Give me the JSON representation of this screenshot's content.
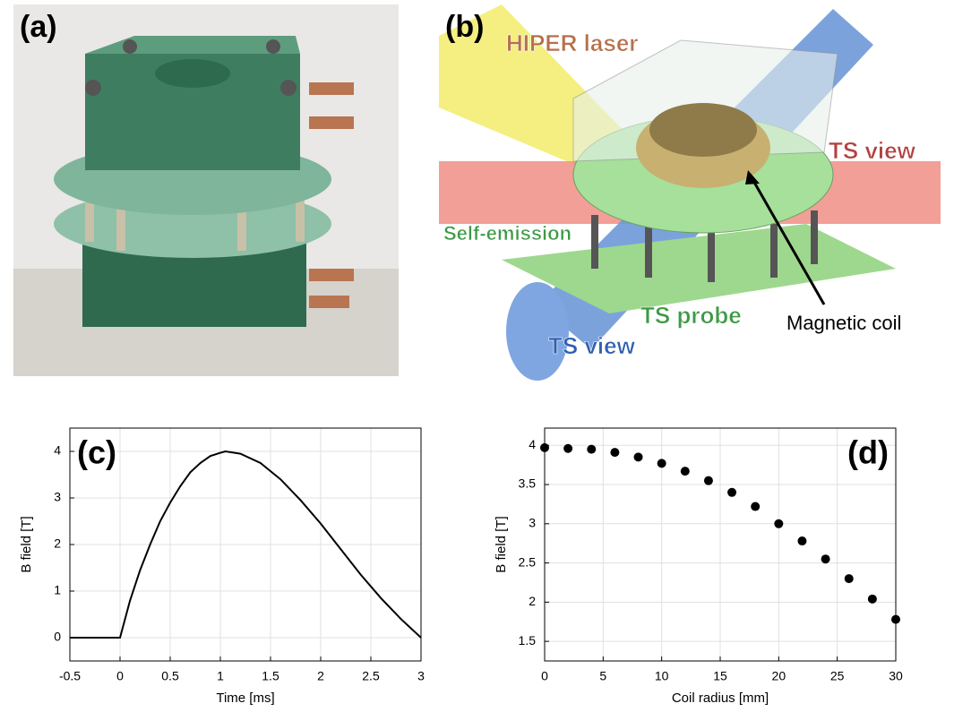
{
  "panels": {
    "a": {
      "label": "(a)"
    },
    "b": {
      "label": "(b)",
      "labels": [
        "HIPER laser",
        "TS view",
        "Self-emission",
        "TS probe",
        "TS view",
        "Magnetic coil"
      ]
    }
  },
  "chart_data": [
    {
      "type": "line",
      "annotation": "(c)",
      "xlabel": "Time [ms]",
      "ylabel": "B field [T]",
      "x": [
        -0.5,
        0,
        0.1,
        0.2,
        0.3,
        0.4,
        0.5,
        0.6,
        0.7,
        0.8,
        0.9,
        1.0,
        1.05,
        1.2,
        1.4,
        1.6,
        1.8,
        2.0,
        2.2,
        2.4,
        2.6,
        2.8,
        3.0
      ],
      "series": [
        {
          "name": "B field",
          "color": "#000000",
          "values": [
            0,
            0,
            0.8,
            1.45,
            2.0,
            2.5,
            2.9,
            3.25,
            3.55,
            3.75,
            3.9,
            3.97,
            4.0,
            3.95,
            3.75,
            3.4,
            2.95,
            2.45,
            1.9,
            1.35,
            0.85,
            0.4,
            0
          ]
        }
      ],
      "xlim": [
        -0.5,
        3
      ],
      "xticks": [
        -0.5,
        0,
        0.5,
        1,
        1.5,
        2,
        2.5,
        3
      ],
      "ylim": [
        -0.5,
        4.5
      ],
      "yticks": [
        0,
        1,
        2,
        3,
        4
      ],
      "grid": true
    },
    {
      "type": "scatter",
      "annotation": "(d)",
      "xlabel": "Coil radius [mm]",
      "ylabel": "B field [T]",
      "x": [
        0,
        2,
        4,
        6,
        8,
        10,
        12,
        14,
        16,
        18,
        20,
        22,
        24,
        26,
        28,
        30
      ],
      "series": [
        {
          "name": "B field",
          "color": "#000000",
          "values": [
            3.97,
            3.96,
            3.95,
            3.91,
            3.85,
            3.77,
            3.67,
            3.55,
            3.4,
            3.22,
            3.0,
            2.78,
            2.55,
            2.3,
            2.04,
            1.78
          ]
        }
      ],
      "xlim": [
        0,
        30
      ],
      "xticks": [
        0,
        5,
        10,
        15,
        20,
        25,
        30
      ],
      "ylim": [
        1.25,
        4.22
      ],
      "yticks": [
        1.5,
        2,
        2.5,
        3,
        3.5,
        4
      ],
      "grid": true
    }
  ]
}
